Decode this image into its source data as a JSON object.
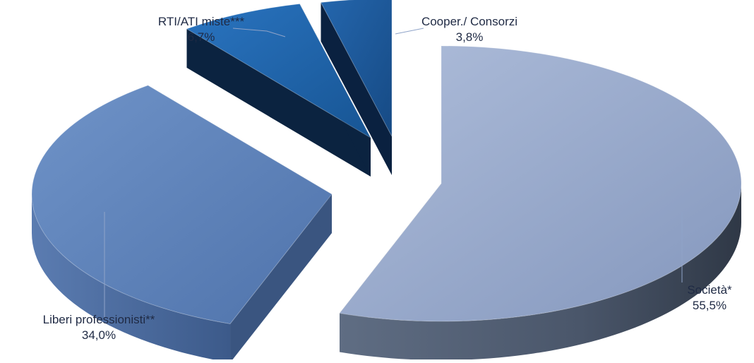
{
  "chart_data": {
    "type": "pie",
    "style": "3d-exploded",
    "categories": [
      "Società*",
      "Liberi professionisti**",
      "RTI/ATI miste***",
      "Cooper./ Consorzi"
    ],
    "values": [
      55.5,
      34.0,
      6.7,
      3.8
    ],
    "value_labels": [
      "55,5%",
      "34,0%",
      "6,7%",
      "3,8%"
    ],
    "colors": [
      "#9aacd0",
      "#5c82bc",
      "#1c5fa6",
      "#1d5597"
    ],
    "title": "",
    "legend": "none"
  }
}
